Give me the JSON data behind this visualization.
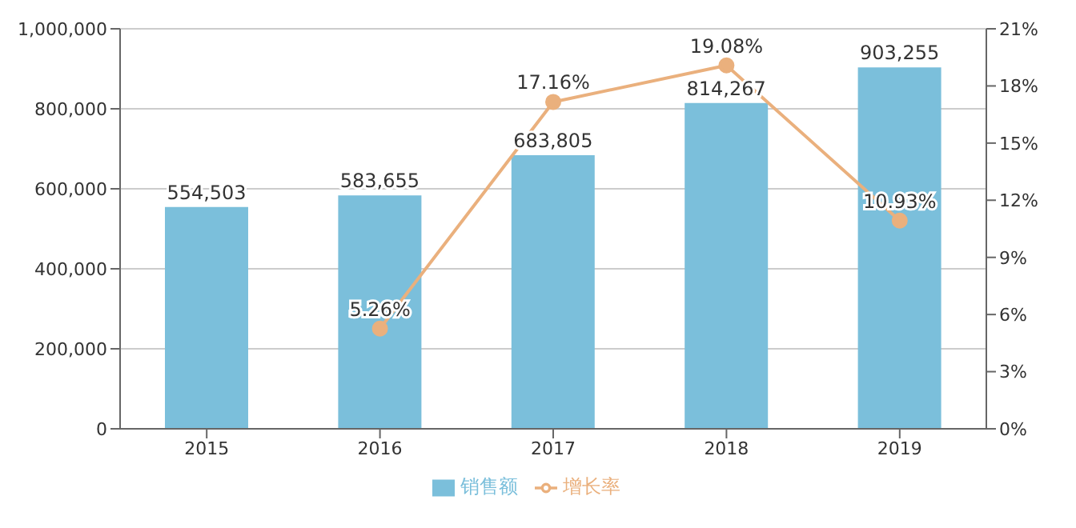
{
  "chart_data": {
    "type": "bar",
    "categories": [
      "2015",
      "2016",
      "2017",
      "2018",
      "2019"
    ],
    "series": [
      {
        "name": "销售额",
        "color": "#7bbfdb",
        "values": [
          554503,
          583655,
          683805,
          814267,
          903255
        ],
        "value_labels": [
          "554,503",
          "583,655",
          "683,805",
          "814,267",
          "903,255"
        ]
      },
      {
        "name": "增长率",
        "type": "line",
        "axis": "y2",
        "color": "#eab07d",
        "values": [
          null,
          5.26,
          17.16,
          19.08,
          10.93
        ],
        "value_labels": [
          null,
          "5.26%",
          "17.16%",
          "19.08%",
          "10.93%"
        ]
      }
    ],
    "ylim": [
      0,
      1000000
    ],
    "yticks": [
      {
        "value": 0,
        "label": "0"
      },
      {
        "value": 200000,
        "label": "200,000"
      },
      {
        "value": 400000,
        "label": "400,000"
      },
      {
        "value": 600000,
        "label": "600,000"
      },
      {
        "value": 800000,
        "label": "800,000"
      },
      {
        "value": 1000000,
        "label": "1,000,000"
      }
    ],
    "y2lim": [
      0,
      21
    ],
    "y2ticks": [
      {
        "value": 0,
        "label": "0%"
      },
      {
        "value": 3,
        "label": "3%"
      },
      {
        "value": 6,
        "label": "6%"
      },
      {
        "value": 9,
        "label": "9%"
      },
      {
        "value": 12,
        "label": "12%"
      },
      {
        "value": 15,
        "label": "15%"
      },
      {
        "value": 18,
        "label": "18%"
      },
      {
        "value": 21,
        "label": "21%"
      }
    ],
    "grid": "y",
    "legend": "bottom",
    "marker": "circle"
  }
}
